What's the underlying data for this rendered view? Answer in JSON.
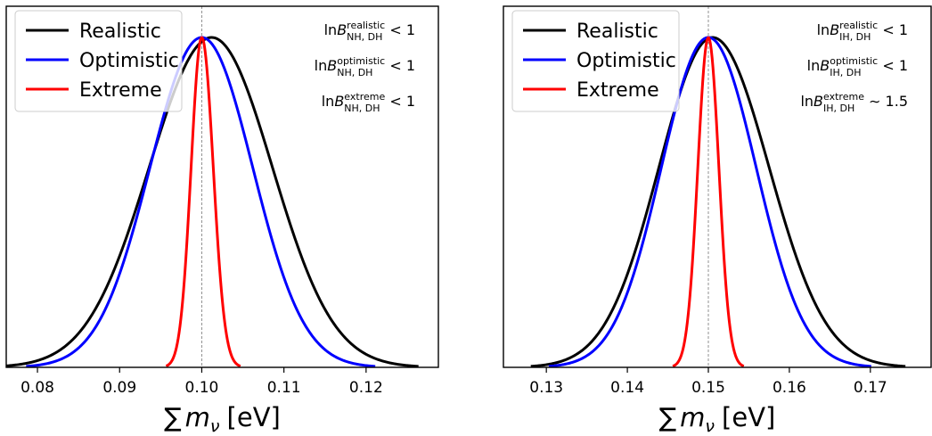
{
  "chart_data": [
    {
      "type": "line",
      "xlabel_sum": "∑",
      "xlabel_m": "m",
      "xlabel_sub": "ν",
      "xlabel_unit": "[eV]",
      "xlim": [
        0.0762,
        0.1288
      ],
      "ylim": [
        0,
        1.0
      ],
      "xticks": [
        0.08,
        0.09,
        0.1,
        0.11,
        0.12
      ],
      "xtick_labels": [
        "0.08",
        "0.09",
        "0.10",
        "0.11",
        "0.12"
      ],
      "yaxis_labels": false,
      "grid": false,
      "legend_position": "top-left",
      "vline": 0.1,
      "series": [
        {
          "name": "Realistic",
          "color": "#000000",
          "mu": 0.1012,
          "sigma_left": 0.0076,
          "sigma_right": 0.0074
        },
        {
          "name": "Optimistic",
          "color": "#0000ff",
          "mu": 0.1,
          "sigma_left": 0.0063,
          "sigma_right": 0.0062
        },
        {
          "name": "Extreme",
          "color": "#ff0000",
          "mu": 0.1,
          "sigma_left": 0.0013,
          "sigma_right": 0.0014
        }
      ],
      "annotations": [
        {
          "pre": "ln",
          "B": "B",
          "sup": "realistic",
          "sub": "NH, DH",
          "rel": "< 1"
        },
        {
          "pre": "ln",
          "B": "B",
          "sup": "optimistic",
          "sub": "NH, DH",
          "rel": "< 1"
        },
        {
          "pre": "ln",
          "B": "B",
          "sup": "extreme",
          "sub": "NH, DH",
          "rel": "< 1"
        }
      ]
    },
    {
      "type": "line",
      "xlabel_sum": "∑",
      "xlabel_m": "m",
      "xlabel_sub": "ν",
      "xlabel_unit": "[eV]",
      "xlim": [
        0.1247,
        0.1775
      ],
      "ylim": [
        0,
        1.0
      ],
      "xticks": [
        0.13,
        0.14,
        0.15,
        0.16,
        0.17
      ],
      "xtick_labels": [
        "0.13",
        "0.14",
        "0.15",
        "0.16",
        "0.17"
      ],
      "yaxis_labels": false,
      "grid": false,
      "legend_position": "top-left",
      "vline": 0.15,
      "series": [
        {
          "name": "Realistic",
          "color": "#000000",
          "mu": 0.1505,
          "sigma_left": 0.0066,
          "sigma_right": 0.007
        },
        {
          "name": "Optimistic",
          "color": "#0000ff",
          "mu": 0.15,
          "sigma_left": 0.0058,
          "sigma_right": 0.0059
        },
        {
          "name": "Extreme",
          "color": "#ff0000",
          "mu": 0.15,
          "sigma_left": 0.0013,
          "sigma_right": 0.0013
        }
      ],
      "annotations": [
        {
          "pre": "ln",
          "B": "B",
          "sup": "realistic",
          "sub": "IH, DH",
          "rel": "< 1"
        },
        {
          "pre": "ln",
          "B": "B",
          "sup": "optimistic",
          "sub": "IH, DH",
          "rel": "< 1"
        },
        {
          "pre": "ln",
          "B": "B",
          "sup": "extreme",
          "sub": "IH, DH",
          "rel": "∼ 1.5"
        }
      ]
    }
  ]
}
